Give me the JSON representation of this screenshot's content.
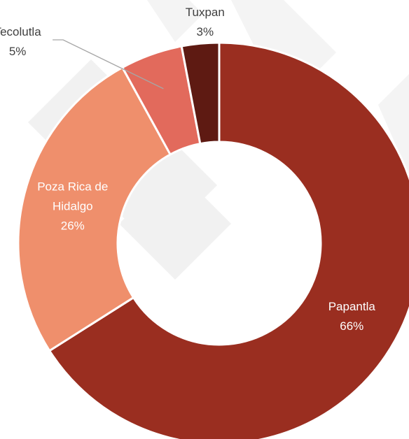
{
  "chart_data": {
    "type": "pie",
    "variant": "donut",
    "slices": [
      {
        "label": "Papantla",
        "percent_label": "66%",
        "value": 66,
        "color": "#9A2E20"
      },
      {
        "label": "Poza Rica de Hidalgo",
        "label_lines": [
          "Poza Rica de",
          "Hidalgo"
        ],
        "percent_label": "26%",
        "value": 26,
        "color": "#EF8F6C"
      },
      {
        "label": "Tecolutla",
        "percent_label": "5%",
        "value": 5,
        "color": "#E26A5C"
      },
      {
        "label": "Tuxpan",
        "percent_label": "3%",
        "value": 3,
        "color": "#5E1A12"
      }
    ],
    "title": "",
    "legend": "none",
    "data_labels": "category name and percentage"
  }
}
